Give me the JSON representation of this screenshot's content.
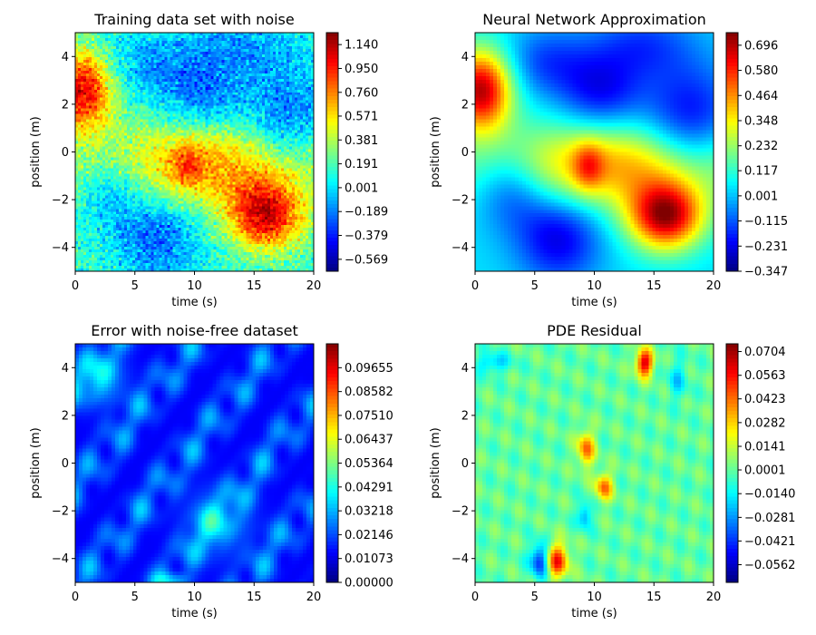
{
  "chart_data": [
    {
      "type": "heatmap",
      "title": "Training data set with noise",
      "xlabel": "time (s)",
      "ylabel": "position (m)",
      "xlim": [
        0,
        20
      ],
      "ylim": [
        -5,
        5
      ],
      "xticks": [
        "0",
        "5",
        "10",
        "15",
        "20"
      ],
      "yticks": [
        "4",
        "2",
        "0",
        "−2",
        "−4"
      ],
      "colormap": "jet",
      "noise": true,
      "vmin": -0.664,
      "vmax": 1.235,
      "colorbar_ticks": [
        "1.140",
        "0.950",
        "0.760",
        "0.571",
        "0.381",
        "0.191",
        "0.001",
        "−0.189",
        "−0.379",
        "−0.569"
      ],
      "colorbar_values": [
        1.14,
        0.95,
        0.76,
        0.571,
        0.381,
        0.191,
        0.001,
        -0.189,
        -0.379,
        -0.569
      ],
      "features": [
        {
          "name": "red blob",
          "t": 0.5,
          "x": 2.6,
          "level": "max"
        },
        {
          "name": "red blob",
          "t": 16,
          "x": -2.7,
          "level": "max"
        },
        {
          "name": "yellow diagonal band",
          "from": [
            0,
            1.5
          ],
          "to": [
            20,
            -2
          ],
          "level": "mid-high"
        },
        {
          "name": "blue region",
          "t": 18,
          "x": 1,
          "level": "low"
        },
        {
          "name": "blue region",
          "t": 7,
          "x": -3.5,
          "level": "low"
        }
      ]
    },
    {
      "type": "heatmap",
      "title": "Neural Network Approximation",
      "xlabel": "time (s)",
      "ylabel": "position (m)",
      "xlim": [
        0,
        20
      ],
      "ylim": [
        -5,
        5
      ],
      "xticks": [
        "0",
        "5",
        "10",
        "15",
        "20"
      ],
      "yticks": [
        "4",
        "2",
        "0",
        "−2",
        "−4"
      ],
      "colormap": "jet",
      "noise": false,
      "vmin": -0.347,
      "vmax": 0.754,
      "colorbar_ticks": [
        "0.696",
        "0.580",
        "0.464",
        "0.348",
        "0.232",
        "0.117",
        "0.001",
        "−0.115",
        "−0.231",
        "−0.347"
      ],
      "colorbar_values": [
        0.696,
        0.58,
        0.464,
        0.348,
        0.232,
        0.117,
        0.001,
        -0.115,
        -0.231,
        -0.347
      ]
    },
    {
      "type": "heatmap",
      "title": "Error with noise-free dataset",
      "xlabel": "time (s)",
      "ylabel": "position (m)",
      "xlim": [
        0,
        20
      ],
      "ylim": [
        -5,
        5
      ],
      "xticks": [
        "0",
        "5",
        "10",
        "15",
        "20"
      ],
      "yticks": [
        "4",
        "2",
        "0",
        "−2",
        "−4"
      ],
      "colormap": "jet",
      "noise": false,
      "vmin": 0.0,
      "vmax": 0.1073,
      "colorbar_ticks": [
        "0.09655",
        "0.08582",
        "0.07510",
        "0.06437",
        "0.05364",
        "0.04291",
        "0.03218",
        "0.02146",
        "0.01073",
        "0.00000"
      ],
      "colorbar_values": [
        0.09655,
        0.08582,
        0.0751,
        0.06437,
        0.05364,
        0.04291,
        0.03218,
        0.02146,
        0.01073,
        0.0
      ]
    },
    {
      "type": "heatmap",
      "title": "PDE Residual",
      "xlabel": "time (s)",
      "ylabel": "position (m)",
      "xlim": [
        0,
        20
      ],
      "ylim": [
        -5,
        5
      ],
      "xticks": [
        "0",
        "5",
        "10",
        "15",
        "20"
      ],
      "yticks": [
        "4",
        "2",
        "0",
        "−2",
        "−4"
      ],
      "colormap": "jet",
      "noise": false,
      "vmin": -0.0667,
      "vmax": 0.075,
      "colorbar_ticks": [
        "0.0704",
        "0.0563",
        "0.0423",
        "0.0282",
        "0.0141",
        "0.0001",
        "−0.0140",
        "−0.0281",
        "−0.0421",
        "−0.0562"
      ],
      "colorbar_values": [
        0.0704,
        0.0563,
        0.0423,
        0.0282,
        0.0141,
        0.0001,
        -0.014,
        -0.0281,
        -0.0421,
        -0.0562
      ]
    }
  ]
}
